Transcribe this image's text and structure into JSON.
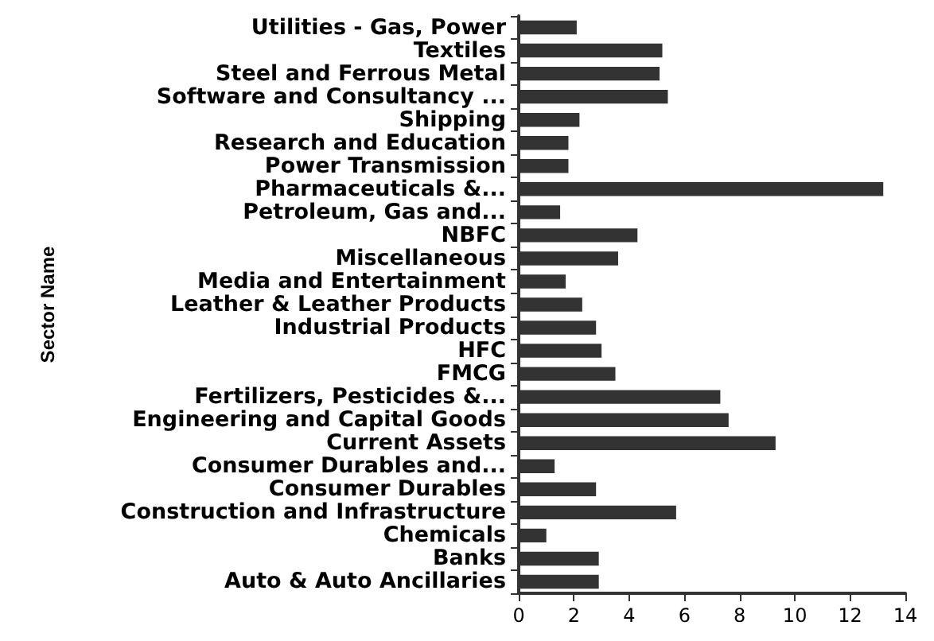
{
  "chart_data": {
    "type": "bar",
    "orientation": "horizontal",
    "ylabel": "Sector Name",
    "categories": [
      "Utilities - Gas, Power",
      "Textiles",
      "Steel and Ferrous Metal",
      "Software and Consultancy ...",
      "Shipping",
      "Research and Education",
      "Power Transmission",
      "Pharmaceuticals &...",
      "Petroleum, Gas and...",
      "NBFC",
      "Miscellaneous",
      "Media and Entertainment",
      "Leather & Leather Products",
      "Industrial Products",
      "HFC",
      "FMCG",
      "Fertilizers, Pesticides &...",
      "Engineering and Capital Goods",
      "Current Assets",
      "Consumer Durables and...",
      "Consumer Durables",
      "Construction and Infrastructure",
      "Chemicals",
      "Banks",
      "Auto & Auto Ancillaries"
    ],
    "values": [
      2.1,
      5.2,
      5.1,
      5.4,
      2.2,
      1.8,
      1.8,
      13.2,
      1.5,
      4.3,
      3.6,
      1.7,
      2.3,
      2.8,
      3.0,
      3.5,
      7.3,
      7.6,
      9.3,
      1.3,
      2.8,
      5.7,
      1.0,
      2.9,
      2.9
    ],
    "color": "#333333",
    "xlim": [
      0,
      14
    ],
    "xticks": [
      0,
      2,
      4,
      6,
      8,
      10,
      12,
      14
    ],
    "grid": false
  }
}
